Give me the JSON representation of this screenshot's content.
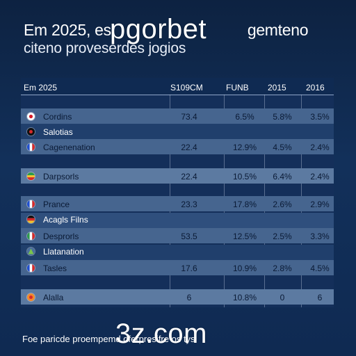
{
  "header": {
    "headline_line_1": "Em 2025, es",
    "headline_line_1_tail": "gemteno",
    "headline_line_2": "citeno proveserdes jogios",
    "brand_overlay": "pgorbet"
  },
  "table": {
    "columns": [
      "Em 2025",
      "S109CM",
      "FUNB",
      "2015",
      "2016"
    ],
    "rows": [
      {
        "flag": "japan",
        "name": "Cordins",
        "values": [
          "73.4",
          "6.5%",
          "5.8%",
          "3.5%"
        ]
      },
      {
        "flag": "red-dot",
        "name": "Salotias",
        "values": [
          "",
          "",
          "",
          ""
        ]
      },
      {
        "flag": "france",
        "name": "Cagenenation",
        "values": [
          "22.4",
          "12.9%",
          "4.5%",
          "2.4%"
        ]
      },
      {
        "flag": "multi",
        "name": "Darpsorls",
        "values": [
          "22.4",
          "10.5%",
          "6.4%",
          "2.4%"
        ]
      },
      {
        "flag": "france",
        "name": "Prance",
        "values": [
          "23.3",
          "17.8%",
          "2.6%",
          "2.9%"
        ]
      },
      {
        "flag": "germany",
        "name": "Acagls Filns",
        "values": [
          "",
          "",
          "",
          ""
        ]
      },
      {
        "flag": "italy",
        "name": "Desprorls",
        "values": [
          "53.5",
          "12.5%",
          "2.5%",
          "3.3%"
        ]
      },
      {
        "flag": "triangle",
        "name": "Llatanation",
        "values": [
          "",
          "",
          "",
          ""
        ]
      },
      {
        "flag": "france",
        "name": "Tasles",
        "values": [
          "17.6",
          "10.9%",
          "2.8%",
          "4.5%"
        ]
      },
      {
        "flag": "orange",
        "name": "Alalla",
        "values": [
          "6",
          "10.8%",
          "0",
          "6"
        ]
      }
    ]
  },
  "footer": {
    "text": "Foe paricde proempemd dferpresifre  os tys",
    "domain_overlay": "3z.com"
  },
  "colors": {
    "background": "#0f2547",
    "panel": "#142f5a",
    "row_dark": "#203f6c",
    "row_mid": "#2f4f7d",
    "row_light": "#46658f",
    "row_extra_light": "#5c7aa1",
    "text_dark": "#0a1a35",
    "text_light": "#ffffff"
  }
}
